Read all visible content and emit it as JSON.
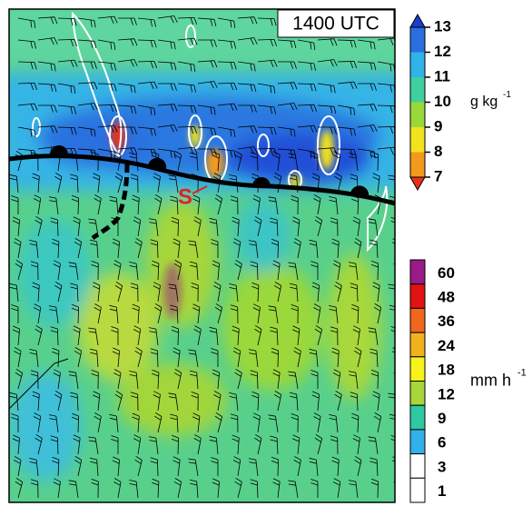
{
  "panel": {
    "time_label": "1400 UTC",
    "marker_label": "S"
  },
  "colorbars": [
    {
      "ticks": [
        "13",
        "12",
        "11",
        "10",
        "9",
        "8",
        "7"
      ],
      "unit": "g kg",
      "unit_exponent": "-1",
      "colors": [
        "#1a3fd0",
        "#2a6fe0",
        "#30b4e8",
        "#3fd0a0",
        "#9ad83a",
        "#f3e21e",
        "#f29a1c",
        "#e8301c"
      ]
    },
    {
      "ticks": [
        "60",
        "48",
        "36",
        "24",
        "18",
        "12",
        "9",
        "6",
        "3",
        "1"
      ],
      "unit": "mm h",
      "unit_exponent": "-1",
      "colors": [
        "#9a1a88",
        "#e01212",
        "#f0661c",
        "#f2b21e",
        "#f6f21a",
        "#a6d63a",
        "#2ec8a2",
        "#32b0ea",
        "#ffffff",
        "#ffffff"
      ]
    }
  ]
}
